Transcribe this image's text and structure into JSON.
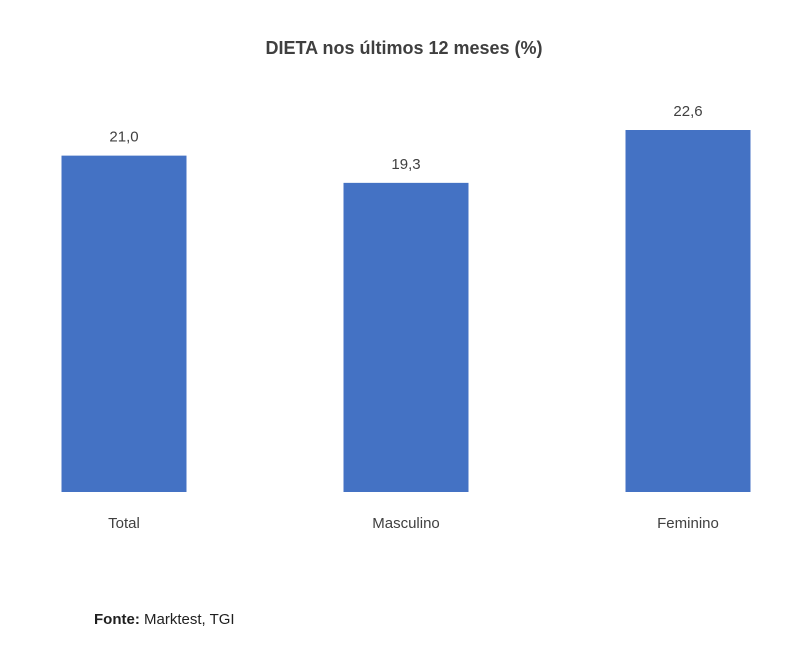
{
  "chart_data": {
    "type": "bar",
    "title": "DIETA nos últimos 12 meses (%)",
    "categories": [
      "Total",
      "Masculino",
      "Feminino"
    ],
    "values": [
      21.0,
      19.3,
      22.6
    ],
    "value_labels": [
      "21,0",
      "19,3",
      "22,6"
    ],
    "xlabel": "",
    "ylabel": "",
    "ylim": [
      0,
      22.6
    ],
    "grid": false,
    "legend": "none",
    "bar_color": "#4472c4"
  },
  "source": {
    "label": "Fonte:",
    "text": " Marktest, TGI"
  }
}
